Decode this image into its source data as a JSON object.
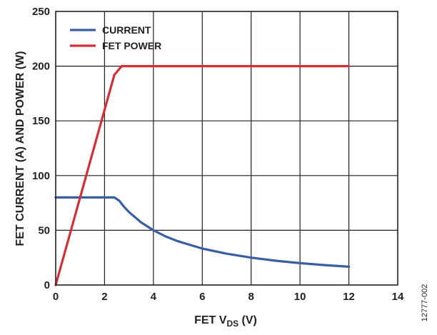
{
  "chart_data": {
    "type": "line",
    "title": "",
    "xlabel": "FET V",
    "xlabel_subscript": "DS",
    "xlabel_suffix": " (V)",
    "ylabel": "FET CURRENT (A) AND POWER (W)",
    "xlim": [
      0,
      14
    ],
    "ylim": [
      0,
      250
    ],
    "x_ticks": [
      0,
      2,
      4,
      6,
      8,
      10,
      12,
      14
    ],
    "y_ticks": [
      0,
      50,
      100,
      150,
      200,
      250
    ],
    "grid": true,
    "legend_position": "top-left",
    "series": [
      {
        "name": "CURRENT",
        "color": "#3a5fa0",
        "points": [
          [
            0,
            80
          ],
          [
            0.5,
            80
          ],
          [
            1.0,
            80
          ],
          [
            1.5,
            80
          ],
          [
            2.0,
            80
          ],
          [
            2.4,
            80
          ],
          [
            2.6,
            77
          ],
          [
            2.8,
            71.4
          ],
          [
            3.0,
            66.7
          ],
          [
            3.5,
            57.1
          ],
          [
            4.0,
            50
          ],
          [
            4.5,
            44.4
          ],
          [
            5.0,
            40
          ],
          [
            6.0,
            33.3
          ],
          [
            7.0,
            28.6
          ],
          [
            8.0,
            25
          ],
          [
            9.0,
            22.2
          ],
          [
            10.0,
            20
          ],
          [
            11.0,
            18.2
          ],
          [
            12.0,
            16.7
          ]
        ]
      },
      {
        "name": "FET POWER",
        "color": "#d22f37",
        "points": [
          [
            0,
            0
          ],
          [
            0.5,
            40
          ],
          [
            1.0,
            80
          ],
          [
            1.5,
            120
          ],
          [
            2.0,
            160
          ],
          [
            2.4,
            192
          ],
          [
            2.7,
            200
          ],
          [
            4,
            200
          ],
          [
            6,
            200
          ],
          [
            8,
            200
          ],
          [
            10,
            200
          ],
          [
            12,
            200
          ]
        ]
      }
    ]
  },
  "figure_id": "12777-002"
}
